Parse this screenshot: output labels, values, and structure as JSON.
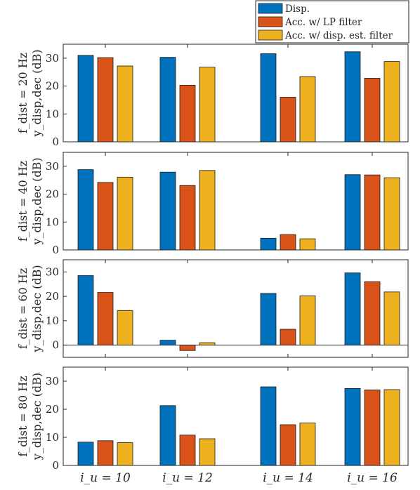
{
  "chart_data": {
    "type": "bar",
    "categories": [
      "i_u = 10",
      "i_u = 12",
      "i_u = 14",
      "i_u = 16"
    ],
    "series_names": [
      "Disp.",
      "Acc. w/ LP filter",
      "Acc. w/ disp. est. filter"
    ],
    "colors": [
      "#0072BD",
      "#D95319",
      "#EDB120"
    ],
    "legend_position": "top-right",
    "grid": false,
    "panels": [
      {
        "ylabel": "f_dist = 20 Hz  y_disp,dec (dB)",
        "ylim": [
          0,
          35
        ],
        "yticks": [
          0,
          10,
          20,
          30
        ],
        "series": [
          {
            "name": "Disp.",
            "values": [
              31.0,
              30.3,
              31.6,
              32.3
            ]
          },
          {
            "name": "Acc. w/ LP filter",
            "values": [
              30.2,
              20.3,
              16.0,
              22.8
            ]
          },
          {
            "name": "Acc. w/ disp. est. filter",
            "values": [
              27.2,
              26.8,
              23.4,
              28.8
            ]
          }
        ]
      },
      {
        "ylabel": "f_dist = 40 Hz  y_disp,dec (dB)",
        "ylim": [
          0,
          35
        ],
        "yticks": [
          0,
          10,
          20,
          30
        ],
        "series": [
          {
            "name": "Disp.",
            "values": [
              28.8,
              27.9,
              4.2,
              27.0
            ]
          },
          {
            "name": "Acc. w/ LP filter",
            "values": [
              24.2,
              23.1,
              5.5,
              26.9
            ]
          },
          {
            "name": "Acc. w/ disp. est. filter",
            "values": [
              26.1,
              28.5,
              4.0,
              25.9
            ]
          }
        ]
      },
      {
        "ylabel": "f_dist = 60 Hz  y_disp,dec (dB)",
        "ylim": [
          -5,
          35
        ],
        "yticks": [
          0,
          10,
          20,
          30
        ],
        "zero_line": true,
        "series": [
          {
            "name": "Disp.",
            "values": [
              28.5,
              2.0,
              21.2,
              29.6
            ]
          },
          {
            "name": "Acc. w/ LP filter",
            "values": [
              21.6,
              -2.2,
              6.5,
              26.0
            ]
          },
          {
            "name": "Acc. w/ disp. est. filter",
            "values": [
              14.2,
              1.0,
              20.2,
              21.8
            ]
          }
        ]
      },
      {
        "ylabel": "f_dist = 80 Hz  y_disp,dec (dB)",
        "ylim": [
          0,
          35
        ],
        "yticks": [
          0,
          10,
          20,
          30
        ],
        "series": [
          {
            "name": "Disp.",
            "values": [
              8.3,
              21.3,
              28.0,
              27.4
            ]
          },
          {
            "name": "Acc. w/ LP filter",
            "values": [
              8.8,
              10.8,
              14.5,
              26.9
            ]
          },
          {
            "name": "Acc. w/ disp. est. filter",
            "values": [
              8.1,
              9.5,
              15.1,
              27.0
            ]
          }
        ]
      }
    ]
  }
}
